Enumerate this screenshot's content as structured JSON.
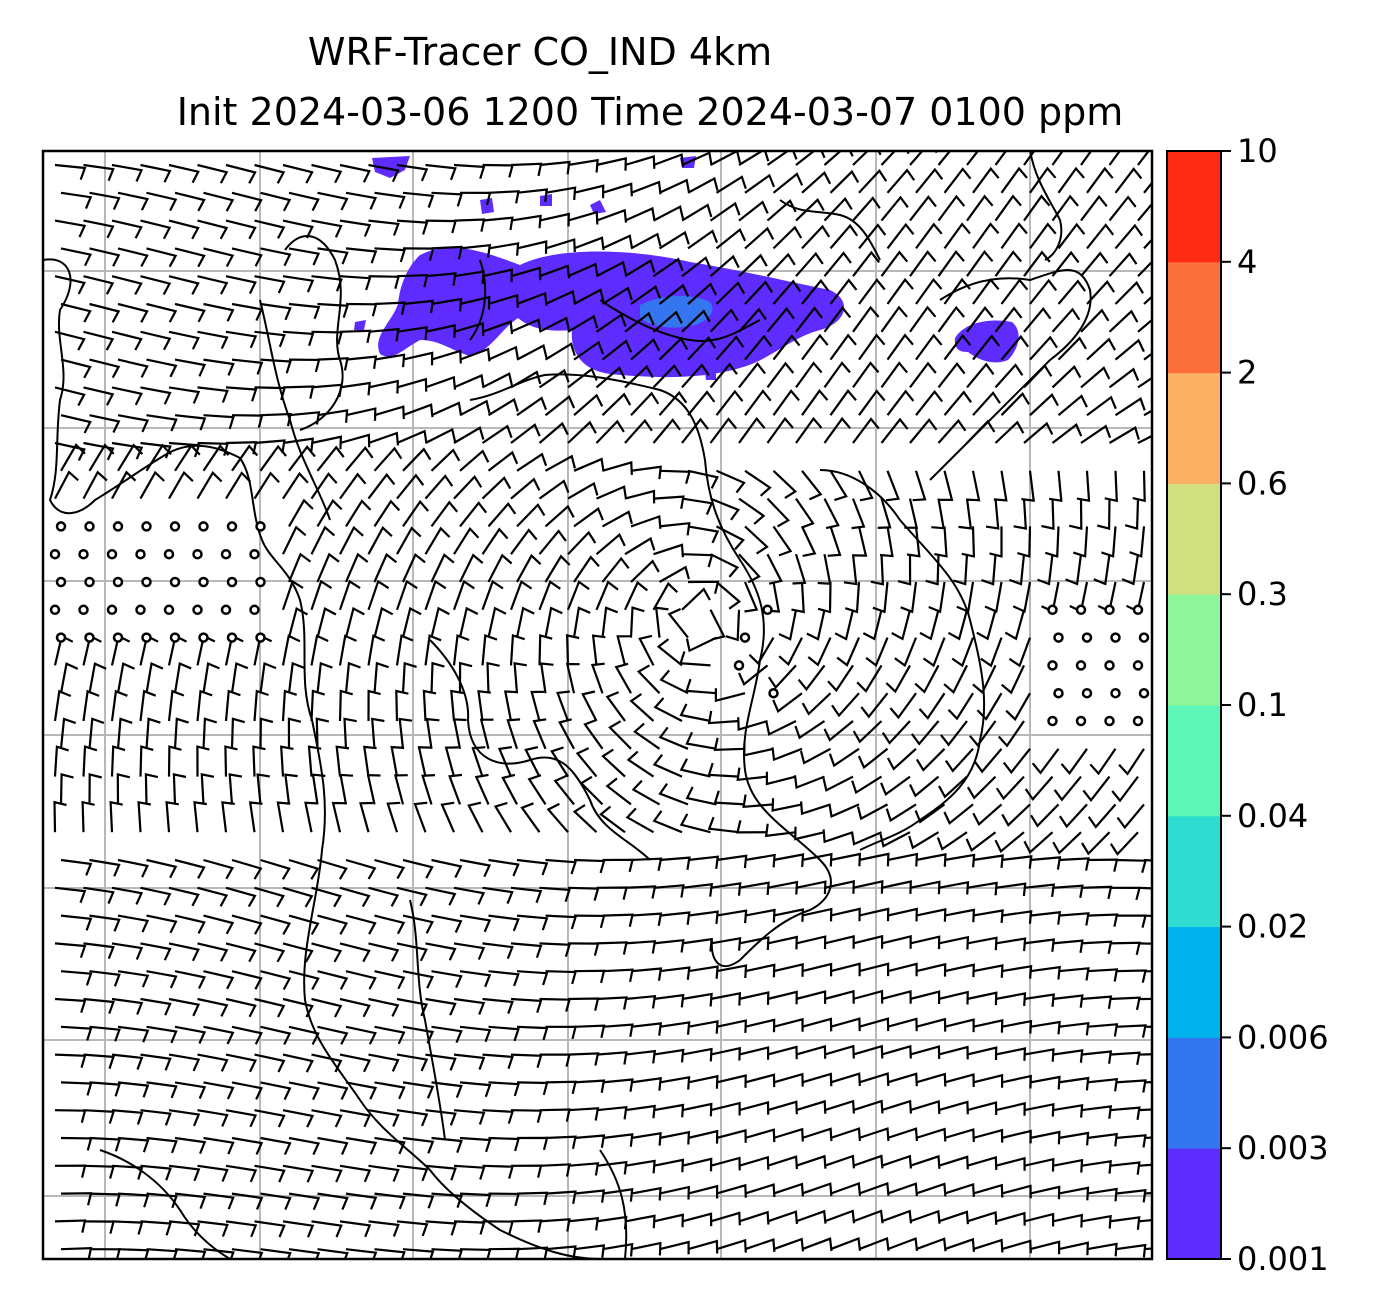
{
  "title": {
    "line1": "WRF-Tracer CO_IND 4km",
    "line2": "Init 2024-03-06 1200 Time 2024-03-07 0100 ppm"
  },
  "colorbar": {
    "levels": [
      "0.001",
      "0.003",
      "0.006",
      "0.02",
      "0.04",
      "0.1",
      "0.3",
      "0.6",
      "2",
      "4",
      "10"
    ],
    "colors": [
      "#5f2cff",
      "#3476f0",
      "#00b2ec",
      "#2fdcd0",
      "#5ef5b8",
      "#8ff59c",
      "#d0e081",
      "#fbb064",
      "#fb6f3a",
      "#ff2a14"
    ]
  },
  "tracer_color": "#5f2cff",
  "tracer_hotspot_color": "#3476f0"
}
